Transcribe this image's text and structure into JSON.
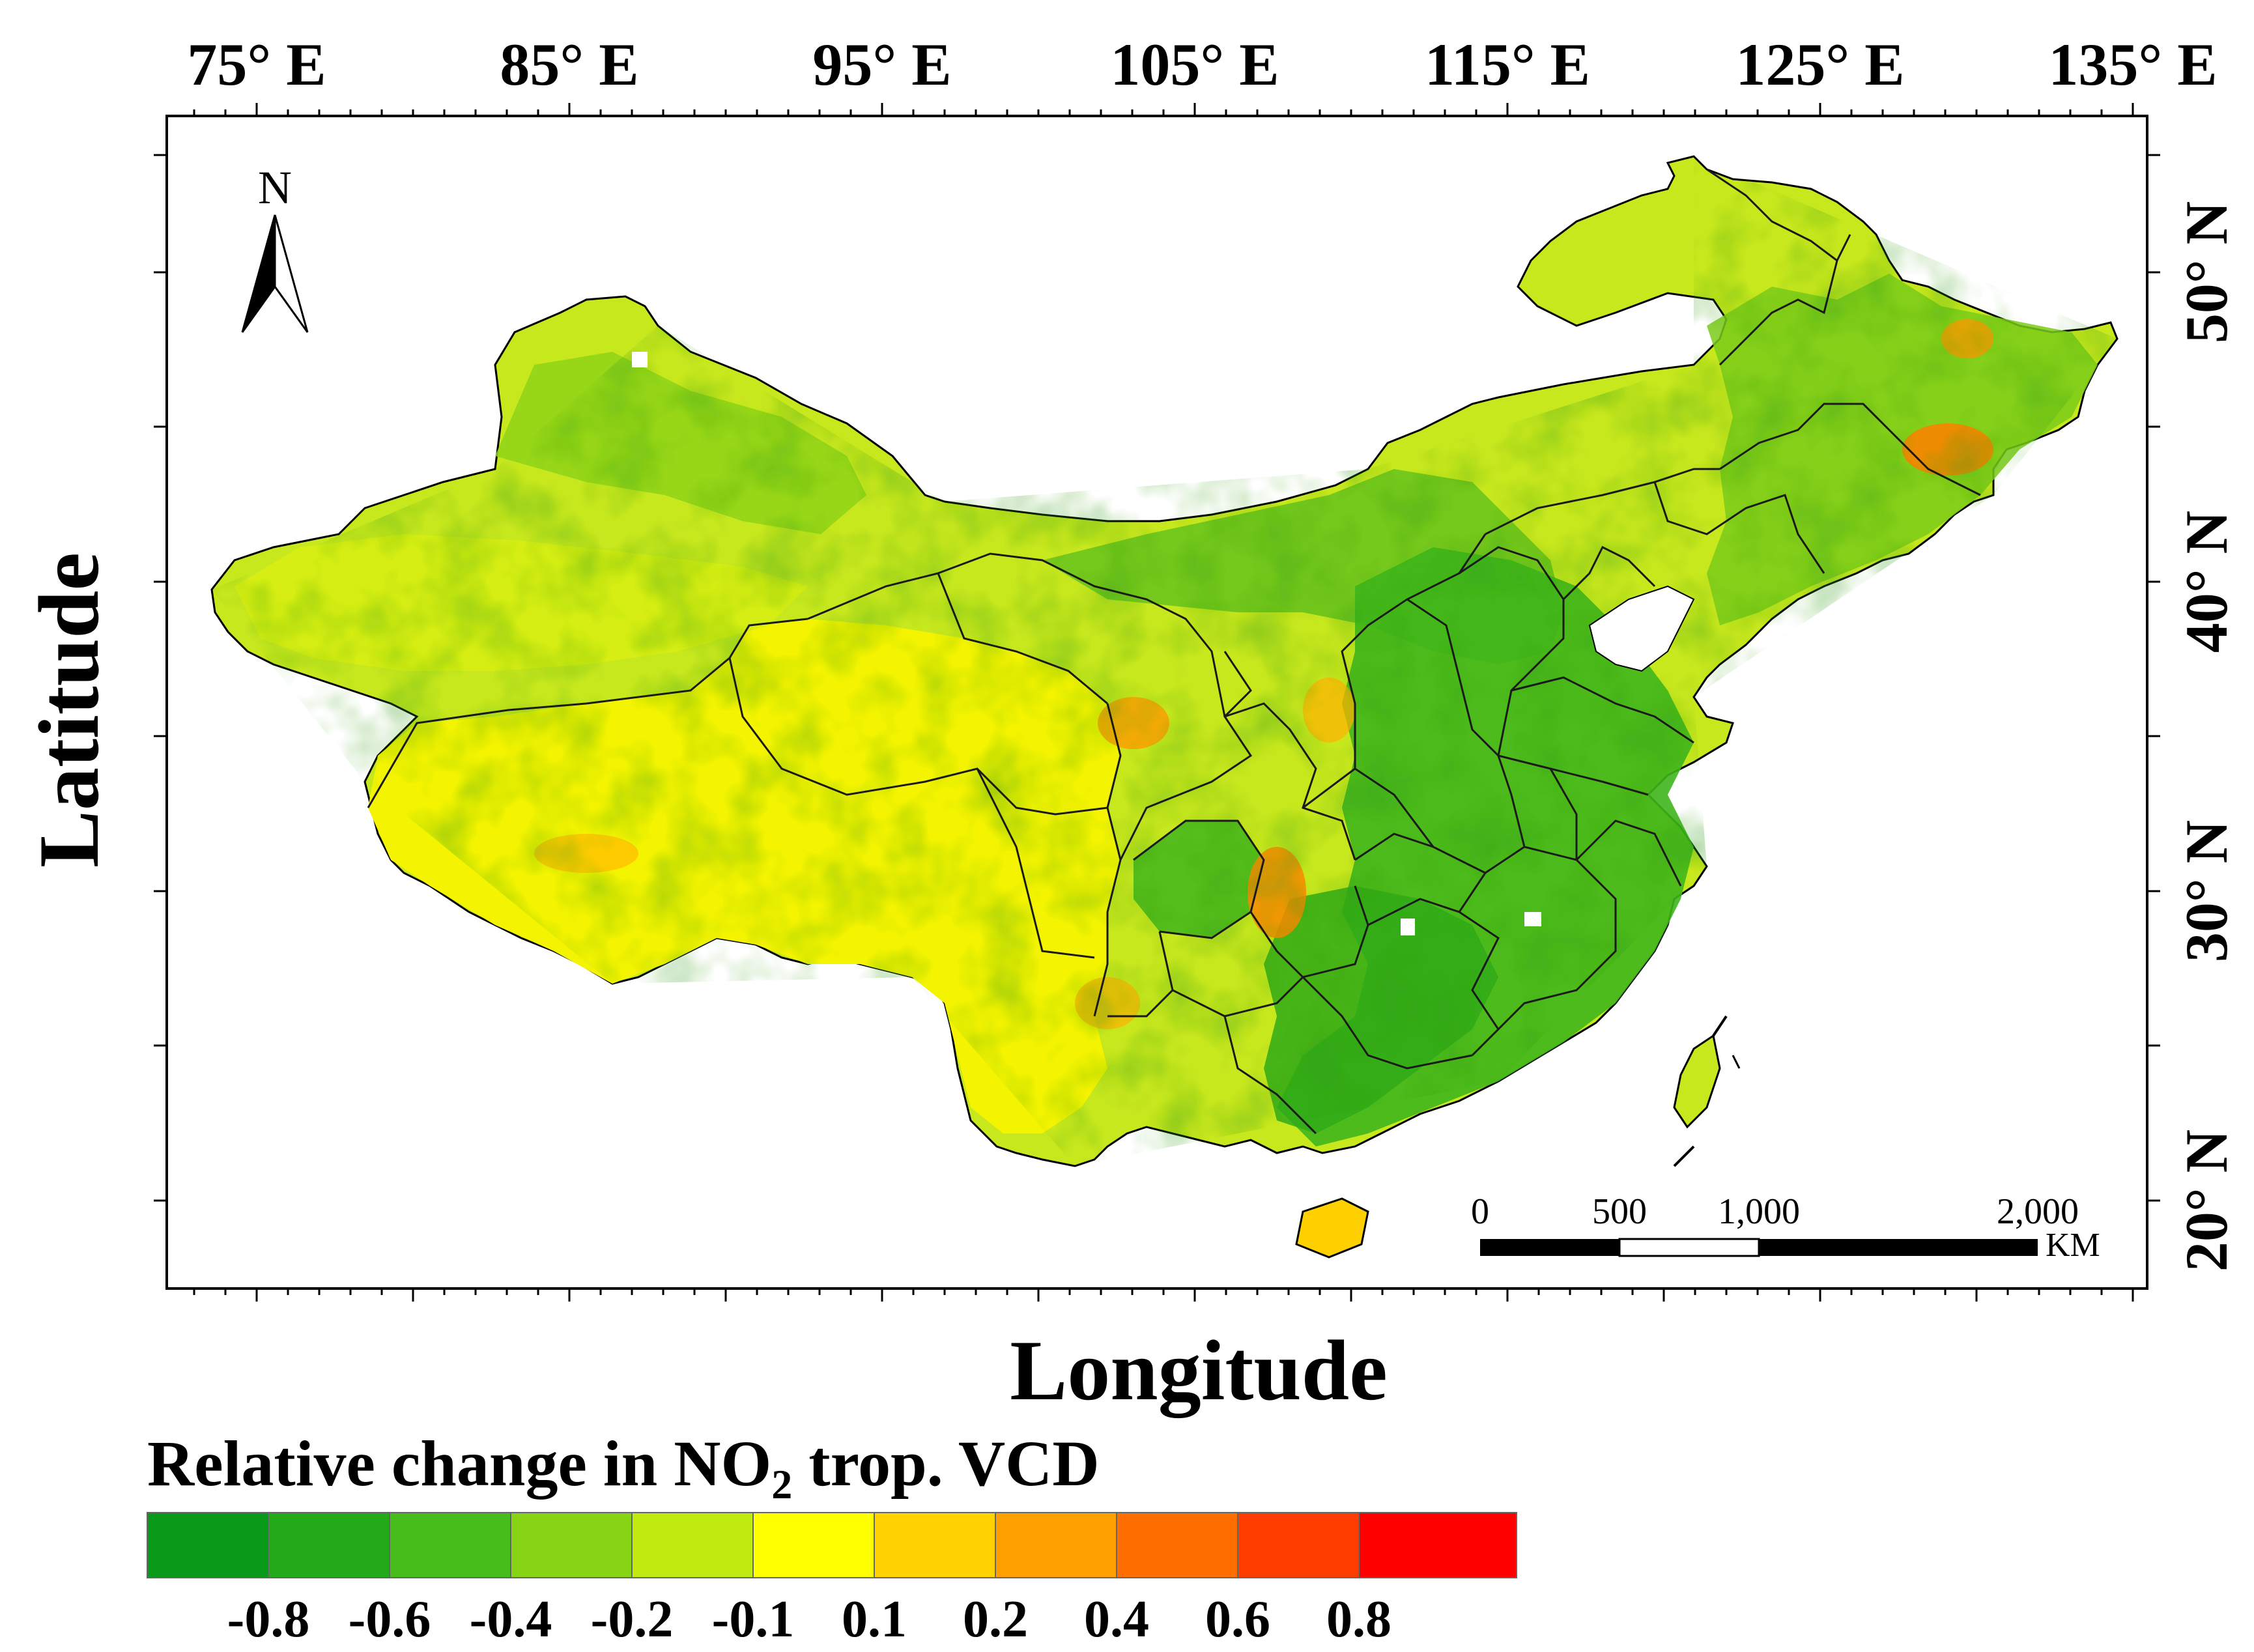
{
  "map": {
    "x_axis_label": "Longitude",
    "y_axis_label": "Latitude",
    "longitude_ticks": [
      "75° E",
      "85° E",
      "95° E",
      "105° E",
      "115° E",
      "125° E",
      "135° E"
    ],
    "latitude_ticks": [
      "50° N",
      "40° N",
      "30° N",
      "20° N"
    ],
    "north_arrow": {
      "label": "N",
      "icon": "north-arrow-icon"
    },
    "scale_bar": {
      "labels": [
        "0",
        "500",
        "1,000",
        "2,000"
      ],
      "unit": "KM"
    }
  },
  "legend": {
    "title_prefix": "Relative change in NO",
    "title_subscript": "2",
    "title_suffix": " trop. VCD",
    "colors": [
      "#0a9a1a",
      "#22aa18",
      "#46bd1a",
      "#86d414",
      "#c0ea10",
      "#ffff00",
      "#ffd200",
      "#ffa000",
      "#ff6e00",
      "#ff3c00",
      "#ff0000"
    ],
    "tick_labels": [
      "-0.8",
      "-0.6",
      "-0.4",
      "-0.2",
      "-0.1",
      "0.1",
      "0.2",
      "0.4",
      "0.6",
      "0.8"
    ]
  }
}
